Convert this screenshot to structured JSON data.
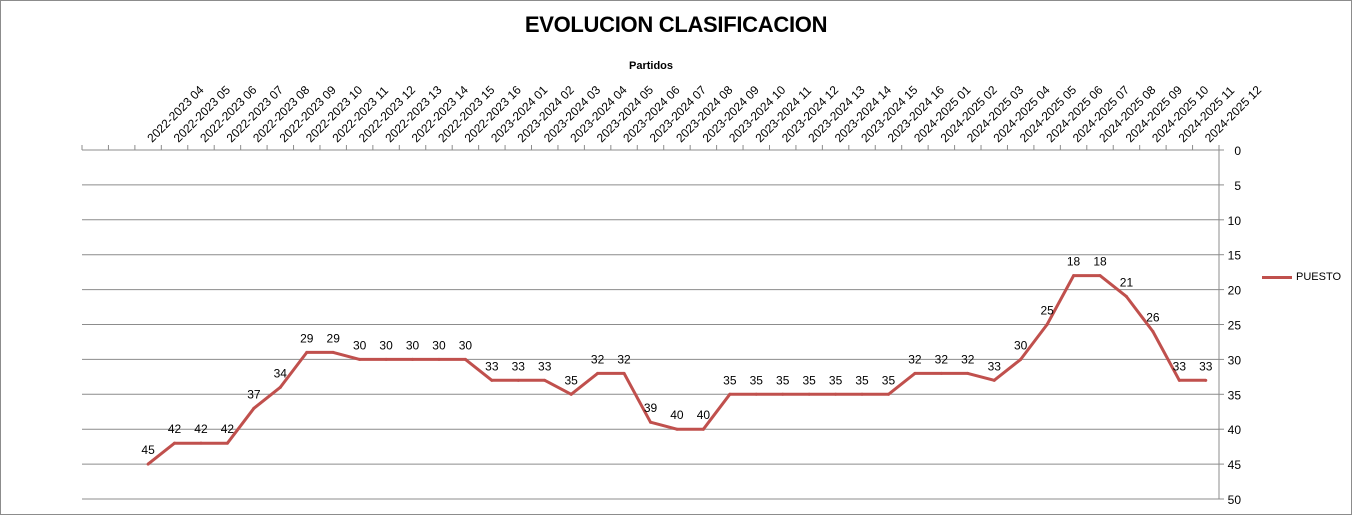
{
  "chart_data": {
    "type": "line",
    "title": "EVOLUCION CLASIFICACION",
    "xlabel": "Partidos",
    "ylabel": "",
    "ylim": [
      0,
      50
    ],
    "y_axis_reversed": true,
    "y_ticks": [
      0,
      5,
      10,
      15,
      20,
      25,
      30,
      35,
      40,
      45,
      50
    ],
    "x_axis_position": "top",
    "y_axis_position": "right",
    "grid": true,
    "legend": "right",
    "categories": [
      "2022-2023 04",
      "2022-2023 05",
      "2022-2023 06",
      "2022-2023 07",
      "2022-2023 08",
      "2022-2023 09",
      "2022-2023 10",
      "2022-2023 11",
      "2022-2023 12",
      "2022-2023 13",
      "2022-2023 14",
      "2022-2023 15",
      "2022-2023 16",
      "2023-2024 01",
      "2023-2024 02",
      "2023-2024 03",
      "2023-2024 04",
      "2023-2024 05",
      "2023-2024 06",
      "2023-2024 07",
      "2023-2024 08",
      "2023-2024 09",
      "2023-2024 10",
      "2023-2024 11",
      "2023-2024 12",
      "2023-2024 13",
      "2023-2024 14",
      "2023-2024 15",
      "2023-2024 16",
      "2024-2025 01",
      "2024-2025 02",
      "2024-2025 03",
      "2024-2025 04",
      "2024-2025 05",
      "2024-2025 06",
      "2024-2025 07",
      "2024-2025 08",
      "2024-2025 09",
      "2024-2025 10",
      "2024-2025 11",
      "2024-2025 12"
    ],
    "series": [
      {
        "name": "PUESTO",
        "color": "#c0504d",
        "values": [
          45,
          42,
          42,
          42,
          37,
          34,
          29,
          29,
          30,
          30,
          30,
          30,
          30,
          33,
          33,
          33,
          35,
          32,
          32,
          39,
          40,
          40,
          35,
          35,
          35,
          35,
          35,
          35,
          35,
          32,
          32,
          32,
          33,
          30,
          25,
          18,
          18,
          21,
          26,
          33,
          33
        ]
      }
    ]
  }
}
